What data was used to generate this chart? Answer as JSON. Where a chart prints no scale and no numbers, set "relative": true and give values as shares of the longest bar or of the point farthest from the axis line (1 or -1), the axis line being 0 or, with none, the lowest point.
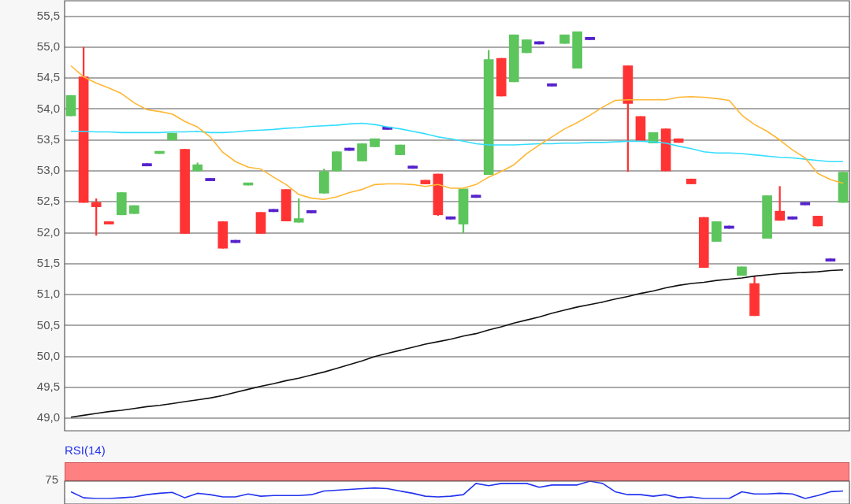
{
  "chart_data": [
    {
      "type": "candlestick",
      "categories": [
        null,
        null,
        null,
        null,
        null,
        null,
        null,
        null,
        null,
        null,
        null,
        null,
        null,
        null,
        null,
        null,
        null,
        null,
        null,
        null,
        null,
        null,
        null,
        null,
        null,
        null,
        null,
        null,
        null,
        null,
        null,
        null,
        null,
        null,
        null,
        null,
        null,
        null,
        null,
        null,
        null,
        null,
        null,
        null,
        null,
        null,
        null,
        null,
        null,
        null,
        null,
        null,
        null,
        null,
        null,
        null,
        null,
        null,
        null,
        null,
        null,
        null
      ],
      "ohlc": [
        [
          53.89,
          54.22,
          53.89,
          54.22
        ],
        [
          54.52,
          55.0,
          52.49,
          52.49
        ],
        [
          52.49,
          52.55,
          51.96,
          52.42
        ],
        [
          52.18,
          52.18,
          52.14,
          52.14
        ],
        [
          52.29,
          52.65,
          52.29,
          52.65
        ],
        [
          52.31,
          52.44,
          52.31,
          52.44
        ],
        [
          53.12,
          53.12,
          53.08,
          53.08
        ],
        [
          53.28,
          53.3,
          53.28,
          53.3
        ],
        [
          53.5,
          53.61,
          53.5,
          53.61
        ],
        [
          53.35,
          53.35,
          51.99,
          51.99
        ],
        [
          53.0,
          53.13,
          53.0,
          53.1
        ],
        [
          52.88,
          52.88,
          52.84,
          52.84
        ],
        [
          52.18,
          52.18,
          51.75,
          51.75
        ],
        [
          51.88,
          51.88,
          51.84,
          51.84
        ],
        [
          52.77,
          52.79,
          52.77,
          52.79
        ],
        [
          52.33,
          52.33,
          51.99,
          51.99
        ],
        [
          52.38,
          52.38,
          52.34,
          52.34
        ],
        [
          52.7,
          52.7,
          52.19,
          52.19
        ],
        [
          52.17,
          52.55,
          52.17,
          52.23
        ],
        [
          52.36,
          52.36,
          52.32,
          52.32
        ],
        [
          52.64,
          53.03,
          52.64,
          52.99
        ],
        [
          53.0,
          53.31,
          53.0,
          53.31
        ],
        [
          53.37,
          53.37,
          53.33,
          53.33
        ],
        [
          53.16,
          53.44,
          53.16,
          53.44
        ],
        [
          53.39,
          53.52,
          53.39,
          53.52
        ],
        [
          53.71,
          53.71,
          53.67,
          53.67
        ],
        [
          53.26,
          53.42,
          53.26,
          53.42
        ],
        [
          53.08,
          53.08,
          53.04,
          53.04
        ],
        [
          52.85,
          52.85,
          52.79,
          52.79
        ],
        [
          52.95,
          52.95,
          52.28,
          52.29
        ],
        [
          52.26,
          52.26,
          52.22,
          52.22
        ],
        [
          52.14,
          52.71,
          52.0,
          52.71
        ],
        [
          52.61,
          52.61,
          52.57,
          52.57
        ],
        [
          52.94,
          54.95,
          52.94,
          54.8
        ],
        [
          54.82,
          54.82,
          54.21,
          54.21
        ],
        [
          54.44,
          55.2,
          54.44,
          55.2
        ],
        [
          54.91,
          55.12,
          54.91,
          55.12
        ],
        [
          55.09,
          55.09,
          55.05,
          55.05
        ],
        [
          54.41,
          54.41,
          54.37,
          54.37
        ],
        [
          55.06,
          55.2,
          55.06,
          55.2
        ],
        [
          54.66,
          55.25,
          54.66,
          55.25
        ],
        [
          55.16,
          55.16,
          55.12,
          55.12
        ],
        null,
        null,
        [
          54.7,
          54.7,
          52.99,
          54.09
        ],
        [
          53.88,
          53.88,
          53.49,
          53.49
        ],
        [
          53.45,
          53.62,
          53.45,
          53.62
        ],
        [
          53.68,
          53.68,
          53.0,
          53.0
        ],
        [
          53.52,
          53.52,
          53.46,
          53.46
        ],
        [
          52.87,
          52.87,
          52.79,
          52.79
        ],
        [
          52.25,
          52.25,
          51.44,
          51.44
        ],
        [
          51.86,
          52.18,
          51.86,
          52.18
        ],
        [
          52.11,
          52.11,
          52.07,
          52.07
        ],
        [
          51.31,
          51.45,
          51.31,
          51.45
        ],
        [
          51.18,
          51.3,
          50.66,
          50.66
        ],
        [
          51.91,
          52.6,
          51.91,
          52.6
        ],
        [
          52.35,
          52.75,
          52.2,
          52.2
        ],
        [
          52.26,
          52.26,
          52.22,
          52.22
        ],
        [
          52.49,
          52.49,
          52.45,
          52.45
        ],
        [
          52.27,
          52.27,
          52.11,
          52.11
        ],
        [
          51.58,
          51.58,
          51.54,
          51.54
        ],
        [
          52.49,
          52.98,
          52.49,
          52.98
        ]
      ],
      "colors": [
        "#5cc55c",
        "#ff3333",
        "#ff3333",
        "#ff3333",
        "#5cc55c",
        "#5cc55c",
        "#5522cc",
        "#5cc55c",
        "#5cc55c",
        "#ff3333",
        "#5cc55c",
        "#5522cc",
        "#ff3333",
        "#5522cc",
        "#5cc55c",
        "#ff3333",
        "#5522cc",
        "#ff3333",
        "#5cc55c",
        "#5522cc",
        "#5cc55c",
        "#5cc55c",
        "#5522cc",
        "#5cc55c",
        "#5cc55c",
        "#5522cc",
        "#5cc55c",
        "#5522cc",
        "#ff3333",
        "#ff3333",
        "#5522cc",
        "#5cc55c",
        "#5522cc",
        "#5cc55c",
        "#ff3333",
        "#5cc55c",
        "#5cc55c",
        "#5522cc",
        "#5522cc",
        "#5cc55c",
        "#5cc55c",
        "#5522cc",
        "#5522cc",
        "#5522cc",
        "#ff3333",
        "#ff3333",
        "#5cc55c",
        "#ff3333",
        "#ff3333",
        "#ff3333",
        "#ff3333",
        "#5cc55c",
        "#5522cc",
        "#5cc55c",
        "#ff3333",
        "#5cc55c",
        "#ff3333",
        "#5522cc",
        "#5522cc",
        "#ff3333",
        "#5522cc",
        "#5cc55c"
      ],
      "series": [
        {
          "type": "line",
          "color": "#ffb733",
          "values": [
            54.7,
            54.52,
            54.42,
            54.34,
            54.25,
            54.1,
            53.99,
            53.96,
            53.92,
            53.8,
            53.71,
            53.55,
            53.3,
            53.15,
            53.06,
            53.03,
            52.9,
            52.78,
            52.62,
            52.56,
            52.54,
            52.58,
            52.65,
            52.7,
            52.78,
            52.79,
            52.79,
            52.78,
            52.75,
            52.78,
            52.72,
            52.72,
            52.78,
            52.9,
            52.99,
            53.1,
            53.28,
            53.42,
            53.55,
            53.68,
            53.78,
            53.9,
            54.03,
            54.14,
            54.15,
            54.15,
            54.15,
            54.15,
            54.19,
            54.2,
            54.19,
            54.17,
            54.14,
            53.9,
            53.75,
            53.64,
            53.5,
            53.34,
            53.21,
            52.96,
            52.86,
            52.8
          ]
        },
        {
          "type": "line",
          "color": "#33ddff",
          "values": [
            53.64,
            53.64,
            53.63,
            53.63,
            53.62,
            53.62,
            53.62,
            53.62,
            53.63,
            53.63,
            53.64,
            53.62,
            53.62,
            53.63,
            53.65,
            53.66,
            53.67,
            53.69,
            53.7,
            53.72,
            53.73,
            53.74,
            53.76,
            53.77,
            53.75,
            53.71,
            53.68,
            53.64,
            53.6,
            53.55,
            53.52,
            53.48,
            53.44,
            53.42,
            53.42,
            53.42,
            53.43,
            53.44,
            53.44,
            53.45,
            53.45,
            53.46,
            53.46,
            53.47,
            53.48,
            53.48,
            53.47,
            53.45,
            53.4,
            53.36,
            53.31,
            53.29,
            53.29,
            53.28,
            53.26,
            53.24,
            53.22,
            53.21,
            53.19,
            53.17,
            53.15,
            53.15
          ]
        },
        {
          "type": "line",
          "color": "#111111",
          "values": [
            49.02,
            49.05,
            49.08,
            49.11,
            49.13,
            49.16,
            49.19,
            49.21,
            49.24,
            49.27,
            49.3,
            49.33,
            49.37,
            49.42,
            49.47,
            49.52,
            49.56,
            49.61,
            49.65,
            49.7,
            49.75,
            49.81,
            49.87,
            49.93,
            50.0,
            50.05,
            50.1,
            50.15,
            50.2,
            50.24,
            50.28,
            50.33,
            50.37,
            50.43,
            50.48,
            50.54,
            50.59,
            50.64,
            50.7,
            50.75,
            50.8,
            50.84,
            50.88,
            50.93,
            50.97,
            51.02,
            51.06,
            51.11,
            51.15,
            51.18,
            51.2,
            51.23,
            51.25,
            51.27,
            51.3,
            51.32,
            51.34,
            51.35,
            51.36,
            51.37,
            51.39,
            51.4
          ]
        }
      ],
      "ylim": [
        48.8,
        55.75
      ],
      "yticks": [
        {
          "value": 49,
          "label": "49,0"
        },
        {
          "value": 49.5,
          "label": "49,5"
        },
        {
          "value": 50,
          "label": "50,0"
        },
        {
          "value": 50.5,
          "label": "50,5"
        },
        {
          "value": 51,
          "label": "51,0"
        },
        {
          "value": 51.5,
          "label": "51,5"
        },
        {
          "value": 52,
          "label": "52,0"
        },
        {
          "value": 52.5,
          "label": "52,5"
        },
        {
          "value": 53,
          "label": "53,0"
        },
        {
          "value": 53.5,
          "label": "53,5"
        },
        {
          "value": 54,
          "label": "54,0"
        },
        {
          "value": 54.5,
          "label": "54,5"
        },
        {
          "value": 55,
          "label": "55,0"
        },
        {
          "value": 55.5,
          "label": "55,5"
        }
      ],
      "grid": "y",
      "tick_labels": "y"
    },
    {
      "type": "line",
      "title": "RSI(14)",
      "categories": [
        null,
        null,
        null,
        null,
        null,
        null,
        null,
        null,
        null,
        null,
        null,
        null,
        null,
        null,
        null,
        null,
        null,
        null,
        null,
        null,
        null,
        null,
        null,
        null,
        null,
        null,
        null,
        null,
        null,
        null,
        null,
        null,
        null,
        null,
        null,
        null,
        null,
        null,
        null,
        null,
        null,
        null,
        null,
        null,
        null,
        null,
        null,
        null,
        null,
        null,
        null,
        null,
        null,
        null,
        null,
        null,
        null,
        null,
        null,
        null,
        null,
        null
      ],
      "series": [
        {
          "color": "#2233ee",
          "values": [
            0.39,
            0.04,
            0,
            0,
            0.04,
            0.09,
            0.22,
            0.3,
            0.35,
            0.04,
            0.3,
            0.22,
            0.09,
            0.09,
            0.26,
            0.13,
            0.17,
            0.17,
            0.17,
            0.22,
            0.43,
            0.48,
            0.52,
            0.57,
            0.61,
            0.57,
            0.43,
            0.3,
            0.13,
            0.09,
            0.13,
            0.22,
            0.87,
            0.74,
            0.87,
            0.87,
            0.87,
            0.65,
            0.78,
            0.78,
            0.78,
            1,
            0.87,
            0.39,
            0.22,
            0.22,
            0.13,
            0.22,
            0.04,
            0.09,
            0,
            0,
            0,
            0.39,
            0.26,
            0.26,
            0.3,
            0.26,
            0,
            0.17,
            0.39,
            0.43
          ]
        }
      ],
      "relative": true,
      "annotations": [
        "75"
      ],
      "tick_labels": false
    }
  ]
}
